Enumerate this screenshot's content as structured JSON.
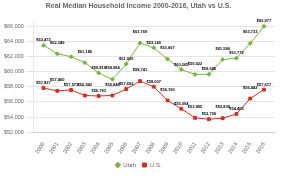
{
  "chart_data": {
    "type": "line",
    "title": "Real Median Household Income 2000-2016, Utah vs U.S.",
    "x": [
      2000,
      2001,
      2002,
      2003,
      2004,
      2005,
      2006,
      2007,
      2008,
      2009,
      2010,
      2011,
      2012,
      2013,
      2014,
      2015,
      2016
    ],
    "series": [
      {
        "name": "Utah",
        "color": "#7cb342",
        "marker": "diamond",
        "values": [
          63472,
          62349,
          61978,
          61185,
          59819,
          58984,
          61005,
          63769,
          63140,
          61667,
          60265,
          59622,
          59645,
          61586,
          61772,
          63733,
          65977
        ],
        "value_labels": [
          "$63,472",
          "$62,349",
          null,
          "$61,185",
          "$59,819",
          "$58,984",
          "$61,005",
          "$63,769",
          "$63,140",
          "$61,667",
          "$60,265",
          "$59,622",
          "$59,645",
          "$61,586",
          "$61,772",
          "$63,733",
          "$65,977"
        ]
      },
      {
        "name": "U.S.",
        "color": "#d03020",
        "marker": "square",
        "values": [
          57827,
          57460,
          57573,
          56843,
          56783,
          56848,
          57692,
          58741,
          58007,
          56190,
          55094,
          53895,
          53709,
          53838,
          54405,
          56442,
          57617
        ],
        "value_labels": [
          "$57,827",
          "$57,460",
          "$57,573",
          "$56,843",
          "$56,783",
          "$56,848",
          "$57,692",
          "$58,741",
          "$58,007",
          "$56,190",
          "$55,094",
          "$53,895",
          "$53,709",
          "$53,838",
          "$54,405",
          "$56,442",
          "$57,617"
        ]
      }
    ],
    "xlim": [
      1999.3,
      2016.8
    ],
    "xticks": [
      2000,
      2001,
      2002,
      2003,
      2004,
      2005,
      2006,
      2007,
      2008,
      2009,
      2010,
      2011,
      2012,
      2013,
      2014,
      2015,
      2016
    ],
    "ylim": [
      52000,
      66500
    ],
    "yticks": [
      {
        "value": 52000,
        "label": "$52,000"
      },
      {
        "value": 54000,
        "label": "$54,000"
      },
      {
        "value": 56000,
        "label": "$56,000"
      },
      {
        "value": 58000,
        "label": "$58,000"
      },
      {
        "value": 60000,
        "label": "$60,000"
      },
      {
        "value": 62000,
        "label": "$62,000"
      },
      {
        "value": 64000,
        "label": "$64,000"
      },
      {
        "value": 66000,
        "label": "$66,000"
      }
    ],
    "grid": "y",
    "legend": "bottom",
    "data_labels": true
  }
}
